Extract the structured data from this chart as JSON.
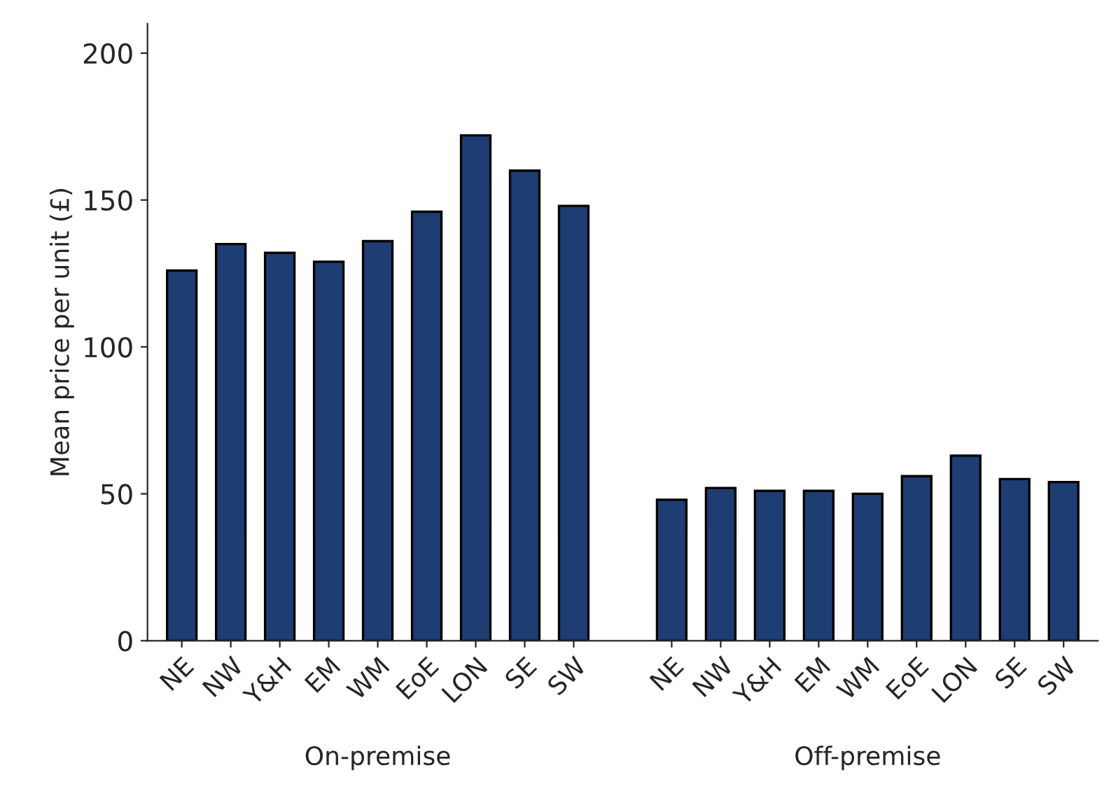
{
  "chart_data": {
    "type": "bar",
    "categories": [
      "NE",
      "NW",
      "Y&H",
      "EM",
      "WM",
      "EoE",
      "LON",
      "SE",
      "SW",
      null,
      "NE",
      "NW",
      "Y&H",
      "EM",
      "WM",
      "EoE",
      "LON",
      "SE",
      "SW"
    ],
    "values": [
      126,
      135,
      132,
      129,
      136,
      146,
      172,
      160,
      148,
      null,
      48,
      52,
      51,
      51,
      50,
      56,
      63,
      55,
      54
    ],
    "color": "#1e3d72",
    "ylabel": "Mean price per unit (£)",
    "ylim": [
      0,
      210
    ],
    "yticks": [
      0,
      50,
      100,
      150,
      200
    ],
    "annotations": [
      "On-premise",
      "Off-premise"
    ],
    "grid": false,
    "legend": false
  }
}
